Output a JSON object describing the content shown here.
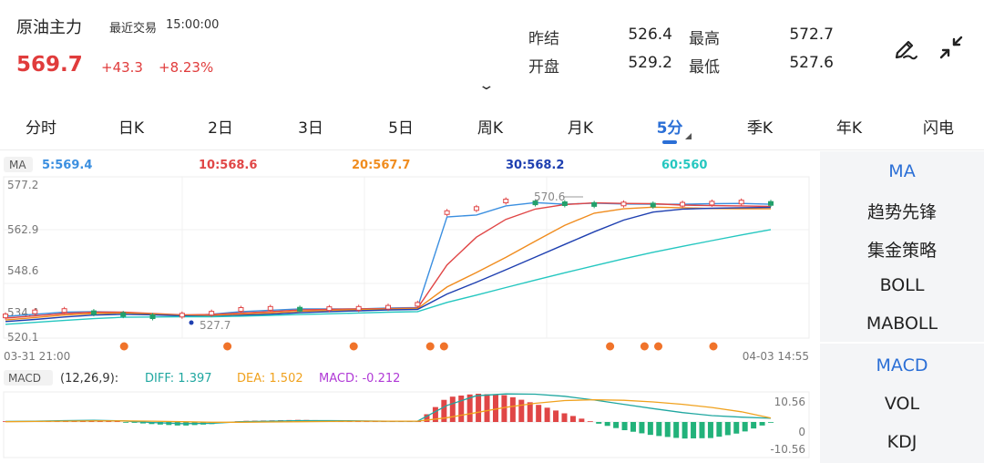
{
  "instrument": {
    "name": "原油主力",
    "last_trade_label": "最近交易",
    "last_trade_time": "15:00:00"
  },
  "quote": {
    "price": "569.7",
    "change": "+43.3",
    "change_pct": "+8.23%"
  },
  "stats": [
    {
      "label": "昨结",
      "value": "526.4"
    },
    {
      "label": "最高",
      "value": "572.7"
    },
    {
      "label": "开盘",
      "value": "529.2"
    },
    {
      "label": "最低",
      "value": "527.6"
    }
  ],
  "icons": {
    "expand": "chevron-down-icon",
    "draw": "pen-draw-icon",
    "collapse": "collapse-arrows-icon"
  },
  "period_tabs": [
    "分时",
    "日K",
    "2日",
    "3日",
    "5日",
    "周K",
    "月K",
    "5分",
    "季K",
    "年K",
    "闪电"
  ],
  "active_period": "5分",
  "ma_indicator": {
    "tag": "MA",
    "items": [
      {
        "label": "5:569.4",
        "color": "#3b8fe0"
      },
      {
        "label": "10:568.6",
        "color": "#e04646"
      },
      {
        "label": "20:567.7",
        "color": "#f08c1e"
      },
      {
        "label": "30:568.2",
        "color": "#1e3fb0"
      },
      {
        "label": "60:560",
        "color": "#25c7c0"
      }
    ]
  },
  "price_axis": [
    "577.2",
    "562.9",
    "548.6",
    "534.4",
    "520.1"
  ],
  "time_axis": {
    "start": "03-31 21:00",
    "end": "04-03 14:55"
  },
  "annotations": {
    "high_marker": "570.6",
    "low_marker": "527.7"
  },
  "macd": {
    "tag": "MACD",
    "params": "(12,26,9):",
    "items": [
      {
        "label": "DIFF: 1.397",
        "color": "#1fa7a0"
      },
      {
        "label": "DEA: 1.502",
        "color": "#f0a21e"
      },
      {
        "label": "MACD: -0.212",
        "color": "#b03ad6"
      }
    ],
    "axis": [
      "10.56",
      "0",
      "-10.56"
    ]
  },
  "side_menu": {
    "main_indicators": [
      "MA",
      "趋势先锋",
      "集金策略",
      "BOLL",
      "MABOLL"
    ],
    "sub_indicators": [
      "MACD",
      "VOL",
      "KDJ"
    ],
    "active_main": "MA",
    "active_sub": "MACD"
  },
  "chart_data": {
    "type": "line",
    "price_range": [
      520.1,
      577.2
    ],
    "series": [
      {
        "name": "MA5",
        "color": "#3b8fe0",
        "values": [
          527.8,
          528.6,
          529.4,
          529.6,
          529.3,
          528.6,
          528.1,
          528.6,
          529.6,
          530.1,
          530.6,
          530.6,
          530.6,
          530.9,
          531.1,
          564.7,
          565.4,
          568.8,
          570.0,
          569.4,
          569.8,
          569.5,
          569.4,
          569.4,
          569.6,
          569.7,
          569.4
        ]
      },
      {
        "name": "MA10",
        "color": "#e04646",
        "values": [
          527.2,
          528.0,
          528.9,
          529.4,
          529.4,
          528.9,
          528.4,
          528.5,
          529.1,
          529.6,
          530.2,
          530.4,
          530.6,
          530.7,
          530.9,
          546.9,
          557.2,
          563.8,
          567.6,
          569.3,
          569.9,
          569.7,
          569.6,
          569.1,
          568.9,
          568.8,
          568.6
        ]
      },
      {
        "name": "MA20",
        "color": "#f08c1e",
        "values": [
          526.5,
          527.4,
          528.3,
          528.9,
          529.1,
          528.7,
          528.2,
          528.1,
          528.6,
          529.1,
          529.7,
          530.0,
          530.3,
          530.5,
          530.7,
          538.7,
          544.1,
          549.7,
          555.7,
          561.6,
          566.1,
          567.7,
          568.3,
          568.1,
          567.8,
          567.7,
          567.7
        ]
      },
      {
        "name": "MA30",
        "color": "#1e3fb0",
        "values": [
          525.9,
          526.7,
          527.6,
          528.3,
          528.6,
          528.4,
          528.0,
          527.8,
          528.2,
          528.6,
          529.2,
          529.6,
          529.9,
          530.2,
          530.4,
          536.1,
          540.5,
          545.1,
          549.8,
          554.5,
          559.2,
          563.5,
          566.5,
          567.6,
          567.9,
          568.1,
          568.2
        ]
      },
      {
        "name": "MA60",
        "color": "#25c7c0",
        "values": [
          524.9,
          525.6,
          526.3,
          527.0,
          527.5,
          527.6,
          527.7,
          527.7,
          527.9,
          528.2,
          528.5,
          528.8,
          529.1,
          529.4,
          529.6,
          533.0,
          535.7,
          538.5,
          541.3,
          544.0,
          546.6,
          549.2,
          551.6,
          553.8,
          555.9,
          558.0,
          560.0
        ]
      }
    ],
    "price": [
      528,
      529.5,
      530,
      529.2,
      528.5,
      527.7,
      528.3,
      529,
      530.4,
      530.8,
      530.5,
      530.7,
      530.8,
      531.2,
      532.3,
      566.3,
      567.8,
      570.6,
      569.9,
      569.6,
      569.3,
      569.5,
      569.1,
      569.4,
      569.8,
      570.2,
      569.7
    ],
    "event_markers": [
      0.155,
      0.29,
      0.455,
      0.555,
      0.573,
      0.79,
      0.835,
      0.853,
      0.925
    ],
    "macd_range": [
      -10.56,
      10.56
    ],
    "diff": [
      0.2,
      0.3,
      0.5,
      0.6,
      0.4,
      -0.2,
      -0.6,
      -0.5,
      0.1,
      0.3,
      0.5,
      0.5,
      0.4,
      0.3,
      0.3,
      6.2,
      9.8,
      10.5,
      10.4,
      9.6,
      8.2,
      6.6,
      5.0,
      3.5,
      2.4,
      1.8,
      1.397
    ],
    "dea": [
      0.1,
      0.2,
      0.3,
      0.4,
      0.4,
      0.3,
      0.1,
      -0.1,
      -0.1,
      0.0,
      0.1,
      0.2,
      0.3,
      0.3,
      0.3,
      1.6,
      3.5,
      5.5,
      7.0,
      8.0,
      8.3,
      8.1,
      7.5,
      6.6,
      5.4,
      3.8,
      1.502
    ],
    "macd_bars": [
      0.2,
      0.3,
      0.5,
      0.4,
      0.0,
      -0.8,
      -1.4,
      -0.8,
      0.4,
      0.6,
      0.8,
      0.6,
      0.2,
      0.0,
      0.0,
      9.2,
      10.6,
      10.0,
      6.8,
      3.2,
      -0.2,
      -3.0,
      -5.0,
      -6.2,
      -6.0,
      -4.0,
      -0.212
    ]
  }
}
